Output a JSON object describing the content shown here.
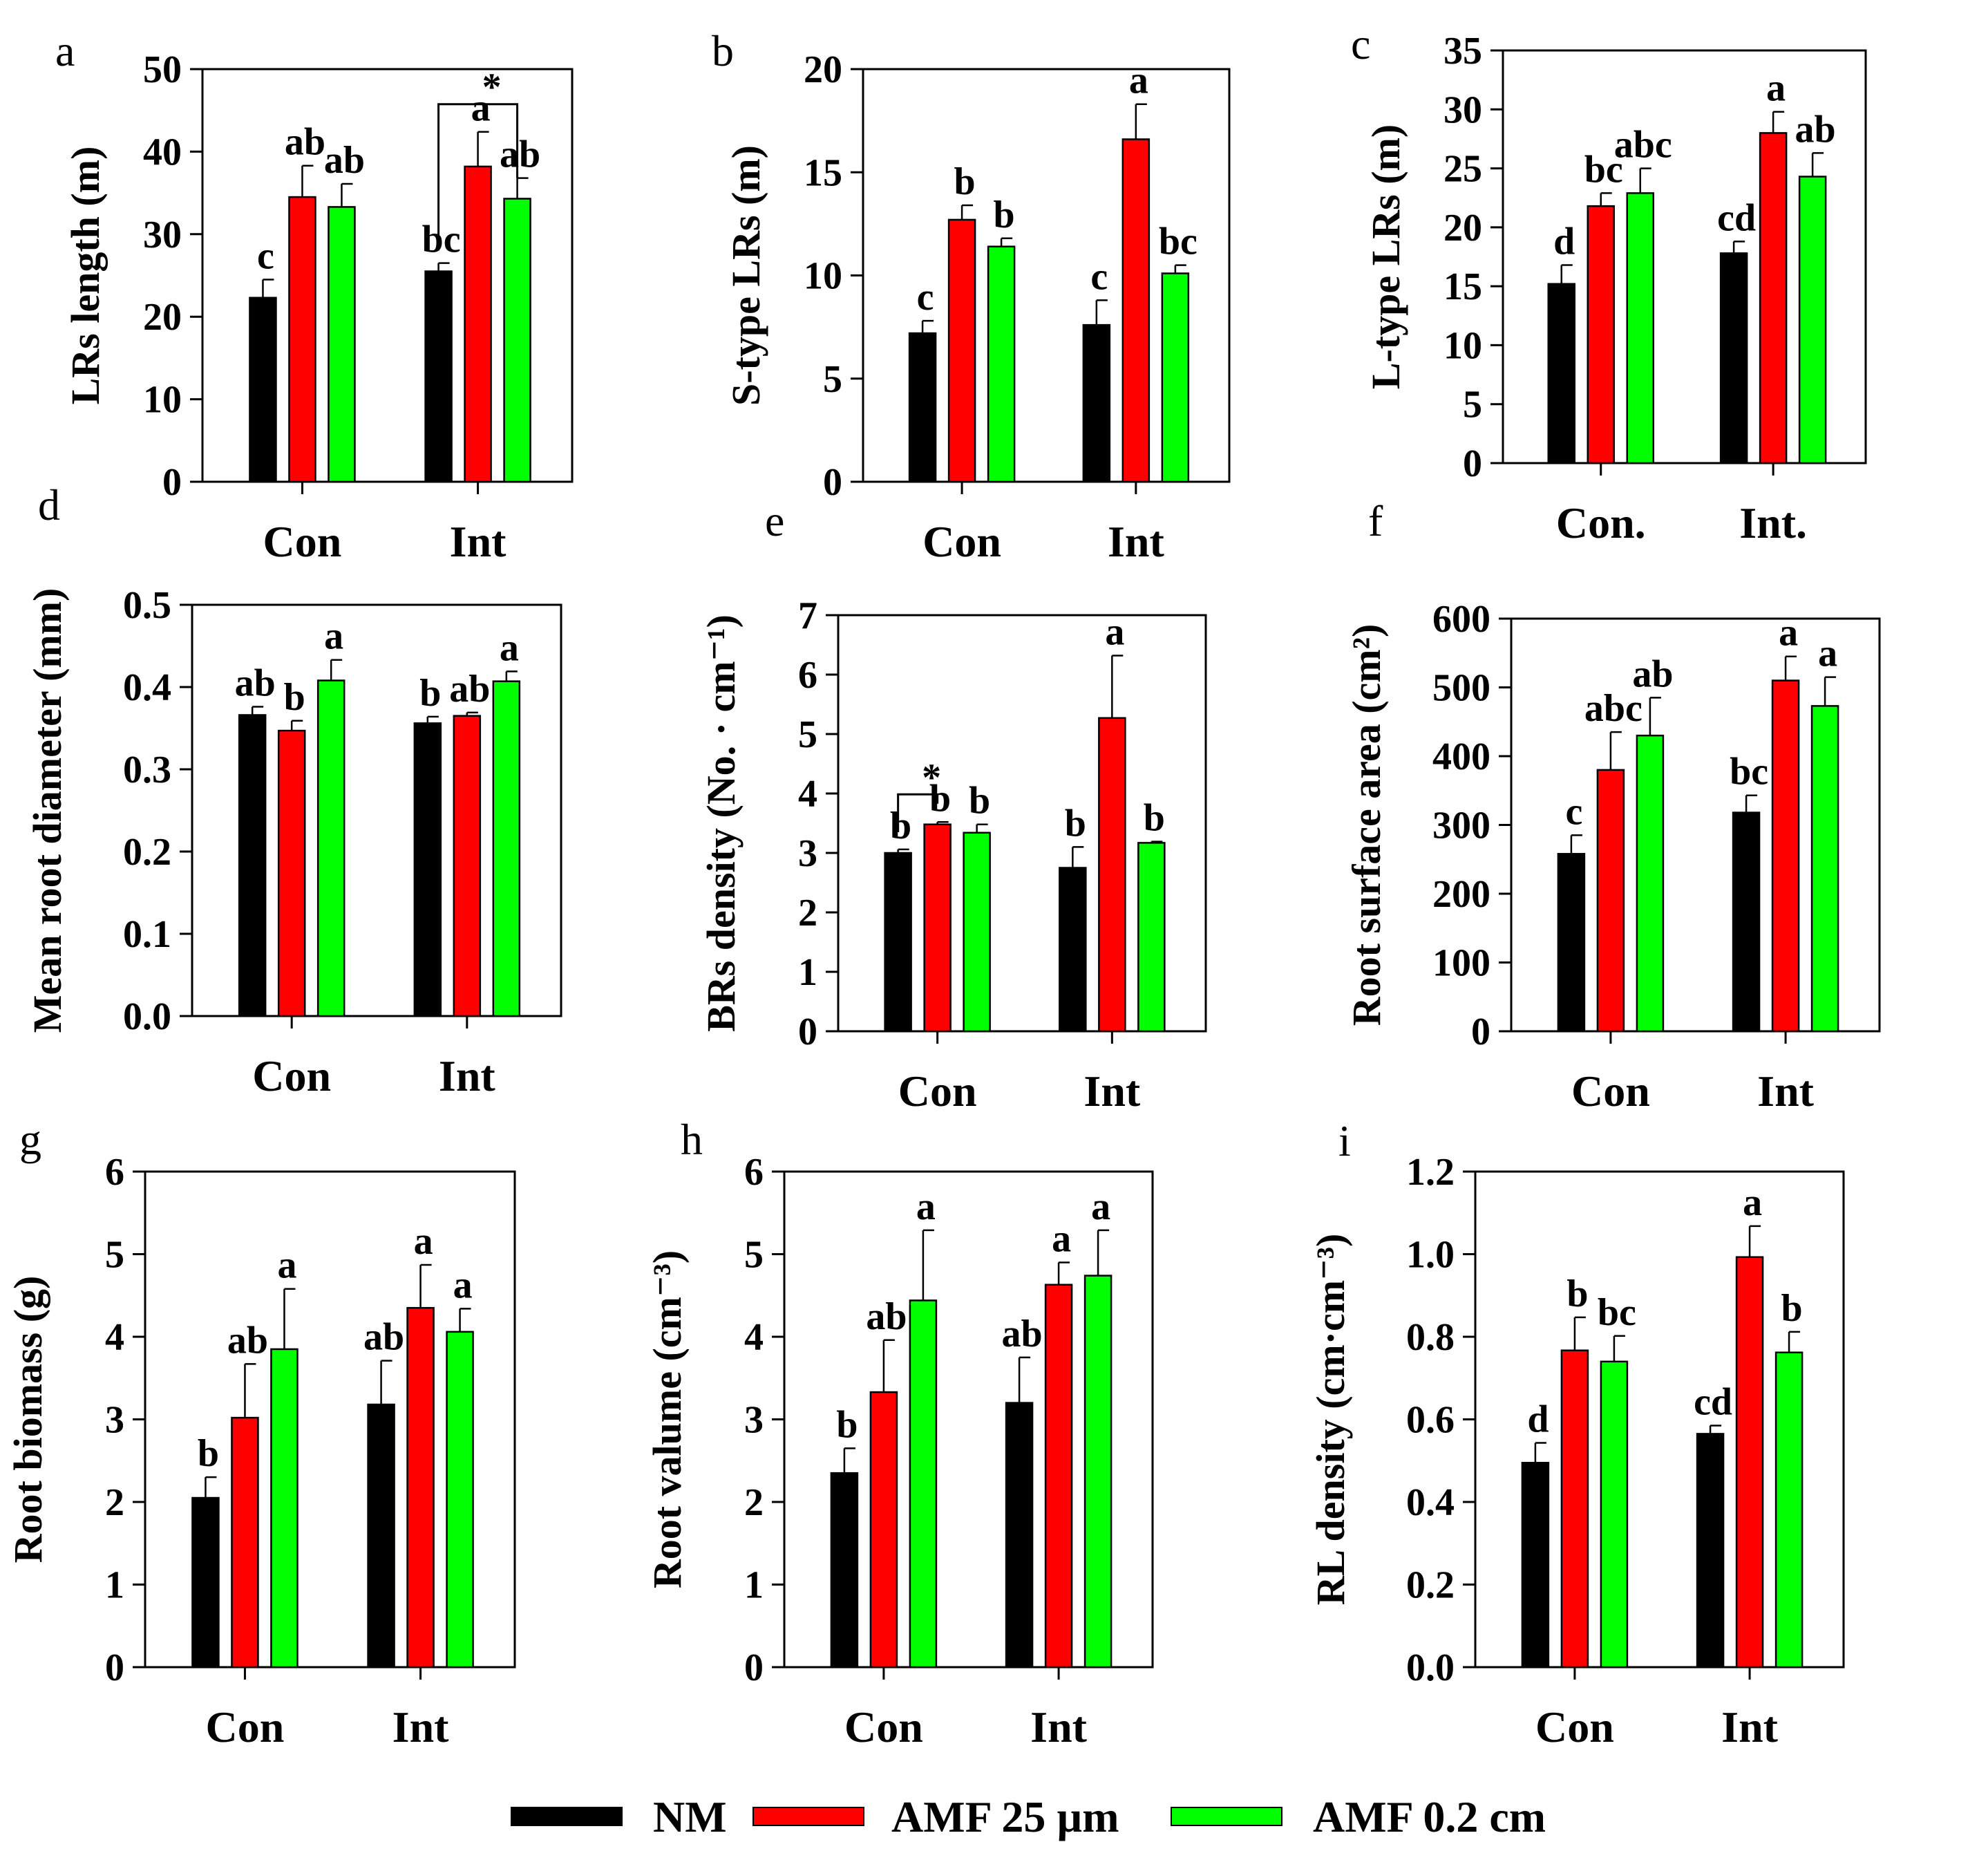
{
  "colors": {
    "NM": "#000000",
    "AMF 25 µm": "#ff0000",
    "AMF 0.2 cm": "#00ff00"
  },
  "legend": [
    {
      "label": "NM",
      "color": "#000000"
    },
    {
      "label": "AMF 25 µm",
      "color": "#ff0000"
    },
    {
      "label": "AMF 0.2 cm",
      "color": "#00ff00"
    }
  ],
  "chart_data": [
    {
      "panel": "a",
      "type": "bar",
      "ylabel": "LRs length (m)",
      "ylim": [
        0,
        50
      ],
      "yticks": [
        "0",
        "10",
        "20",
        "30",
        "40",
        "50"
      ],
      "categories": [
        "Con",
        "Int"
      ],
      "series": [
        {
          "name": "NM",
          "values": [
            22.3,
            25.5
          ],
          "errors": [
            2.2,
            1.0
          ],
          "letters": [
            "c",
            "bc"
          ]
        },
        {
          "name": "AMF 25 µm",
          "values": [
            34.5,
            38.2
          ],
          "errors": [
            3.8,
            4.2
          ],
          "letters": [
            "ab",
            "a"
          ]
        },
        {
          "name": "AMF 0.2 cm",
          "values": [
            33.3,
            34.3
          ],
          "errors": [
            2.8,
            2.5
          ],
          "letters": [
            "ab",
            "ab"
          ]
        }
      ],
      "significance": [
        {
          "category": "Int",
          "from": "NM",
          "to": "AMF 0.2 cm",
          "label": "*"
        }
      ]
    },
    {
      "panel": "b",
      "type": "bar",
      "ylabel": "S-type LRs (m)",
      "ylim": [
        0,
        20
      ],
      "yticks": [
        "0",
        "5",
        "10",
        "15",
        "20"
      ],
      "categories": [
        "Con",
        "Int"
      ],
      "series": [
        {
          "name": "NM",
          "values": [
            7.2,
            7.6
          ],
          "errors": [
            0.6,
            1.2
          ],
          "letters": [
            "c",
            "c"
          ]
        },
        {
          "name": "AMF 25 µm",
          "values": [
            12.7,
            16.6
          ],
          "errors": [
            0.7,
            1.7
          ],
          "letters": [
            "b",
            "a"
          ]
        },
        {
          "name": "AMF 0.2 cm",
          "values": [
            11.4,
            10.1
          ],
          "errors": [
            0.4,
            0.4
          ],
          "letters": [
            "b",
            "bc"
          ]
        }
      ]
    },
    {
      "panel": "c",
      "type": "bar",
      "ylabel": "L-type LRs (m)",
      "ylim": [
        0,
        35
      ],
      "yticks": [
        "0",
        "5",
        "10",
        "15",
        "20",
        "25",
        "30",
        "35"
      ],
      "categories": [
        "Con.",
        "Int."
      ],
      "series": [
        {
          "name": "NM",
          "values": [
            15.2,
            17.8
          ],
          "errors": [
            1.6,
            1.0
          ],
          "letters": [
            "d",
            "cd"
          ]
        },
        {
          "name": "AMF 25 µm",
          "values": [
            21.8,
            28.0
          ],
          "errors": [
            1.1,
            1.8
          ],
          "letters": [
            "bc",
            "a"
          ]
        },
        {
          "name": "AMF 0.2 cm",
          "values": [
            22.9,
            24.3
          ],
          "errors": [
            2.1,
            2.0
          ],
          "letters": [
            "abc",
            "ab"
          ]
        }
      ]
    },
    {
      "panel": "d",
      "type": "bar",
      "ylabel": "Mean root diameter (mm)",
      "ylim": [
        0,
        0.5
      ],
      "yticks": [
        "0.0",
        "0.1",
        "0.2",
        "0.3",
        "0.4",
        "0.5"
      ],
      "categories": [
        "Con",
        "Int"
      ],
      "series": [
        {
          "name": "NM",
          "values": [
            0.366,
            0.356
          ],
          "errors": [
            0.01,
            0.008
          ],
          "letters": [
            "ab",
            "b"
          ]
        },
        {
          "name": "AMF 25 µm",
          "values": [
            0.347,
            0.365
          ],
          "errors": [
            0.012,
            0.004
          ],
          "letters": [
            "b",
            "ab"
          ]
        },
        {
          "name": "AMF 0.2 cm",
          "values": [
            0.408,
            0.407
          ],
          "errors": [
            0.025,
            0.012
          ],
          "letters": [
            "a",
            "a"
          ]
        }
      ]
    },
    {
      "panel": "e",
      "type": "bar",
      "ylabel": "BRs density (No. · cm⁻¹)",
      "ylim": [
        0,
        7
      ],
      "yticks": [
        "0",
        "1",
        "2",
        "3",
        "4",
        "5",
        "6",
        "7"
      ],
      "categories": [
        "Con",
        "Int"
      ],
      "series": [
        {
          "name": "NM",
          "values": [
            3.0,
            2.75
          ],
          "errors": [
            0.06,
            0.35
          ],
          "letters": [
            "b",
            "b"
          ]
        },
        {
          "name": "AMF 25 µm",
          "values": [
            3.48,
            5.27
          ],
          "errors": [
            0.04,
            1.05
          ],
          "letters": [
            "b",
            "a"
          ]
        },
        {
          "name": "AMF 0.2 cm",
          "values": [
            3.34,
            3.17
          ],
          "errors": [
            0.14,
            0.02
          ],
          "letters": [
            "b",
            "b"
          ]
        }
      ],
      "significance": [
        {
          "category": "Con",
          "from": "NM",
          "to": "AMF 25 µm",
          "label": "*"
        }
      ]
    },
    {
      "panel": "f",
      "type": "bar",
      "ylabel": "Root surface area (cm²)",
      "ylim": [
        0,
        600
      ],
      "yticks": [
        "0",
        "100",
        "200",
        "300",
        "400",
        "500",
        "600"
      ],
      "categories": [
        "Con",
        "Int"
      ],
      "series": [
        {
          "name": "NM",
          "values": [
            258,
            318
          ],
          "errors": [
            27,
            25
          ],
          "letters": [
            "c",
            "bc"
          ]
        },
        {
          "name": "AMF 25 µm",
          "values": [
            380,
            510
          ],
          "errors": [
            55,
            35
          ],
          "letters": [
            "abc",
            "a"
          ]
        },
        {
          "name": "AMF 0.2 cm",
          "values": [
            430,
            473
          ],
          "errors": [
            55,
            42
          ],
          "letters": [
            "ab",
            "a"
          ]
        }
      ]
    },
    {
      "panel": "g",
      "type": "bar",
      "ylabel": "Root biomass (g)",
      "ylim": [
        0,
        6
      ],
      "yticks": [
        "0",
        "1",
        "2",
        "3",
        "4",
        "5",
        "6"
      ],
      "categories": [
        "Con",
        "Int"
      ],
      "series": [
        {
          "name": "NM",
          "values": [
            2.05,
            3.18
          ],
          "errors": [
            0.25,
            0.53
          ],
          "letters": [
            "b",
            "ab"
          ]
        },
        {
          "name": "AMF 25 µm",
          "values": [
            3.02,
            4.35
          ],
          "errors": [
            0.65,
            0.52
          ],
          "letters": [
            "ab",
            "a"
          ]
        },
        {
          "name": "AMF 0.2 cm",
          "values": [
            3.85,
            4.06
          ],
          "errors": [
            0.73,
            0.28
          ],
          "letters": [
            "a",
            "a"
          ]
        }
      ]
    },
    {
      "panel": "h",
      "type": "bar",
      "ylabel": "Root valume (cm⁻³)",
      "ylim": [
        0,
        6
      ],
      "yticks": [
        "0",
        "1",
        "2",
        "3",
        "4",
        "5",
        "6"
      ],
      "categories": [
        "Con",
        "Int"
      ],
      "series": [
        {
          "name": "NM",
          "values": [
            2.35,
            3.2
          ],
          "errors": [
            0.3,
            0.55
          ],
          "letters": [
            "b",
            "ab"
          ]
        },
        {
          "name": "AMF 25 µm",
          "values": [
            3.33,
            4.63
          ],
          "errors": [
            0.63,
            0.27
          ],
          "letters": [
            "ab",
            "a"
          ]
        },
        {
          "name": "AMF 0.2 cm",
          "values": [
            4.44,
            4.74
          ],
          "errors": [
            0.85,
            0.55
          ],
          "letters": [
            "a",
            "a"
          ]
        }
      ]
    },
    {
      "panel": "i",
      "type": "bar",
      "ylabel": "RL density (cm·cm⁻³)",
      "ylim": [
        0,
        1.2
      ],
      "yticks": [
        "0.0",
        "0.2",
        "0.4",
        "0.6",
        "0.8",
        "1.0",
        "1.2"
      ],
      "categories": [
        "Con",
        "Int"
      ],
      "series": [
        {
          "name": "NM",
          "values": [
            0.495,
            0.565
          ],
          "errors": [
            0.048,
            0.02
          ],
          "letters": [
            "d",
            "cd"
          ]
        },
        {
          "name": "AMF 25 µm",
          "values": [
            0.767,
            0.993
          ],
          "errors": [
            0.08,
            0.075
          ],
          "letters": [
            "b",
            "a"
          ]
        },
        {
          "name": "AMF 0.2 cm",
          "values": [
            0.74,
            0.762
          ],
          "errors": [
            0.062,
            0.05
          ],
          "letters": [
            "bc",
            "b"
          ]
        }
      ]
    }
  ]
}
